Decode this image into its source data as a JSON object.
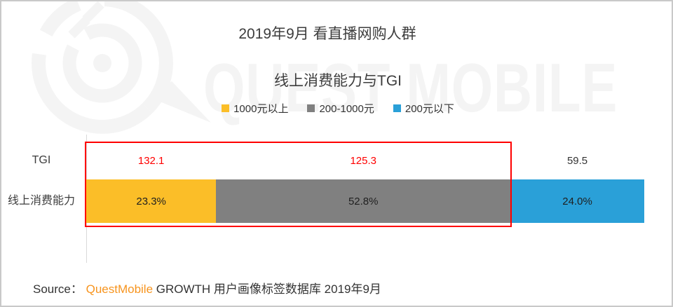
{
  "page": {
    "background": "#ffffff",
    "frame_border_color": "#c9c9c9"
  },
  "watermark": {
    "text": "QUEST MOBILE",
    "color": "#f4f4f4",
    "logo": "questmobile-q-logo"
  },
  "header": {
    "title": "2019年9月 看直播网购人群",
    "subtitle": "线上消费能力与TGI"
  },
  "legend": {
    "items": [
      {
        "label": "1000元以上",
        "color": "#fbbe28"
      },
      {
        "label": "200-1000元",
        "color": "#808080"
      },
      {
        "label": "200元以下",
        "color": "#2aa0d8"
      }
    ]
  },
  "chart_data": {
    "type": "bar",
    "orientation": "horizontal-stacked",
    "title": "线上消费能力与TGI",
    "categories": [
      "1000元以上",
      "200-1000元",
      "200元以下"
    ],
    "rows": [
      "TGI",
      "线上消费能力"
    ],
    "series": [
      {
        "name": "TGI",
        "values": [
          132.1,
          125.3,
          59.5
        ],
        "value_suffix": ""
      },
      {
        "name": "线上消费能力",
        "values": [
          23.3,
          52.8,
          24.0
        ],
        "value_suffix": "%"
      }
    ],
    "segment_colors": [
      "#fbbe28",
      "#808080",
      "#2aa0d8"
    ],
    "tgi_value_colors": [
      "#ff0000",
      "#ff0000",
      "#333333"
    ],
    "xlim": [
      0,
      100
    ],
    "grid": false,
    "legend_position": "top-center",
    "highlight": {
      "description": "red outline around first two segments (TGI row + bar row)",
      "segments": [
        0,
        1
      ],
      "border_color": "#ff0000"
    }
  },
  "row_labels": {
    "tgi": "TGI",
    "spend": "线上消费能力"
  },
  "source": {
    "prefix": "Source：",
    "brand": "QuestMobile",
    "suffix": " GROWTH 用户画像标签数据库 2019年9月",
    "brand_color": "#f7941e"
  }
}
